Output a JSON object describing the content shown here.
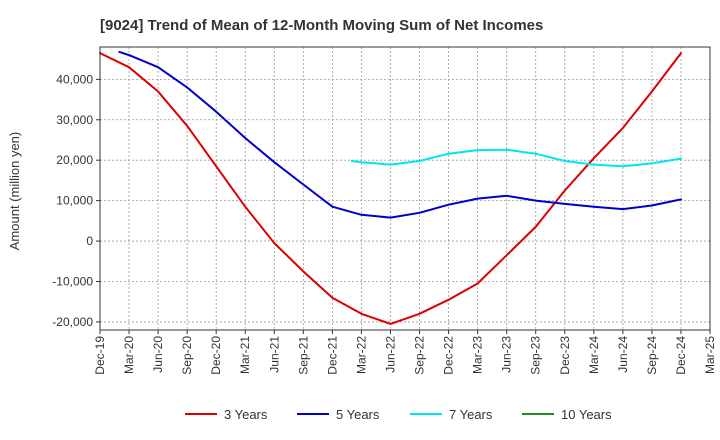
{
  "chart_data": {
    "type": "line",
    "title": "[9024]  Trend of Mean of 12-Month Moving Sum of Net Incomes",
    "xlabel": "",
    "ylabel": "Amount (million yen)",
    "ylim": [
      -22000,
      48000
    ],
    "y_ticks": [
      -20000,
      -10000,
      0,
      10000,
      20000,
      30000,
      40000
    ],
    "y_tick_labels": [
      "-20,000",
      "-10,000",
      "0",
      "10,000",
      "20,000",
      "30,000",
      "40,000"
    ],
    "x_tick_labels": [
      "Dec-19",
      "Mar-20",
      "Jun-20",
      "Sep-20",
      "Dec-20",
      "Mar-21",
      "Jun-21",
      "Sep-21",
      "Dec-21",
      "Mar-22",
      "Jun-22",
      "Sep-22",
      "Dec-22",
      "Mar-23",
      "Jun-23",
      "Sep-23",
      "Dec-23",
      "Mar-24",
      "Jun-24",
      "Sep-24",
      "Dec-24",
      "Mar-25"
    ],
    "grid": true,
    "legend_position": "bottom",
    "series": [
      {
        "name": "3 Years",
        "color": "#dd0000",
        "x": [
          "Dec-19",
          "Mar-20",
          "Jun-20",
          "Sep-20",
          "Dec-20",
          "Mar-21",
          "Jun-21",
          "Sep-21",
          "Dec-21",
          "Mar-22",
          "Jun-22",
          "Sep-22",
          "Dec-22",
          "Mar-23",
          "Jun-23",
          "Sep-23",
          "Dec-23",
          "Mar-24",
          "Jun-24",
          "Sep-24",
          "Dec-24"
        ],
        "values": [
          46500,
          43000,
          37000,
          28500,
          18500,
          8500,
          -500,
          -7500,
          -14000,
          -18000,
          -20500,
          -18000,
          -14500,
          -10500,
          -3500,
          3500,
          12500,
          20500,
          28000,
          37000,
          46500
        ]
      },
      {
        "name": "5 Years",
        "color": "#0000cc",
        "x": [
          "Feb-20",
          "Mar-20",
          "Jun-20",
          "Sep-20",
          "Dec-20",
          "Mar-21",
          "Jun-21",
          "Sep-21",
          "Dec-21",
          "Mar-22",
          "Jun-22",
          "Sep-22",
          "Dec-22",
          "Mar-23",
          "Jun-23",
          "Sep-23",
          "Dec-23",
          "Mar-24",
          "Jun-24",
          "Sep-24",
          "Dec-24"
        ],
        "values": [
          46800,
          46000,
          43000,
          38000,
          32000,
          25500,
          19500,
          14000,
          8500,
          6500,
          5800,
          7000,
          9000,
          10500,
          11200,
          10000,
          9200,
          8500,
          7900,
          8800,
          10300
        ]
      },
      {
        "name": "7 Years",
        "color": "#00e5ee",
        "x": [
          "Feb-22",
          "Mar-22",
          "Jun-22",
          "Sep-22",
          "Dec-22",
          "Mar-23",
          "Jun-23",
          "Sep-23",
          "Dec-23",
          "Mar-24",
          "Jun-24",
          "Sep-24",
          "Dec-24"
        ],
        "values": [
          19800,
          19500,
          18900,
          19800,
          21600,
          22500,
          22600,
          21600,
          19800,
          18900,
          18500,
          19200,
          20400
        ]
      },
      {
        "name": "10 Years",
        "color": "#228b22",
        "x": [],
        "values": []
      }
    ]
  }
}
